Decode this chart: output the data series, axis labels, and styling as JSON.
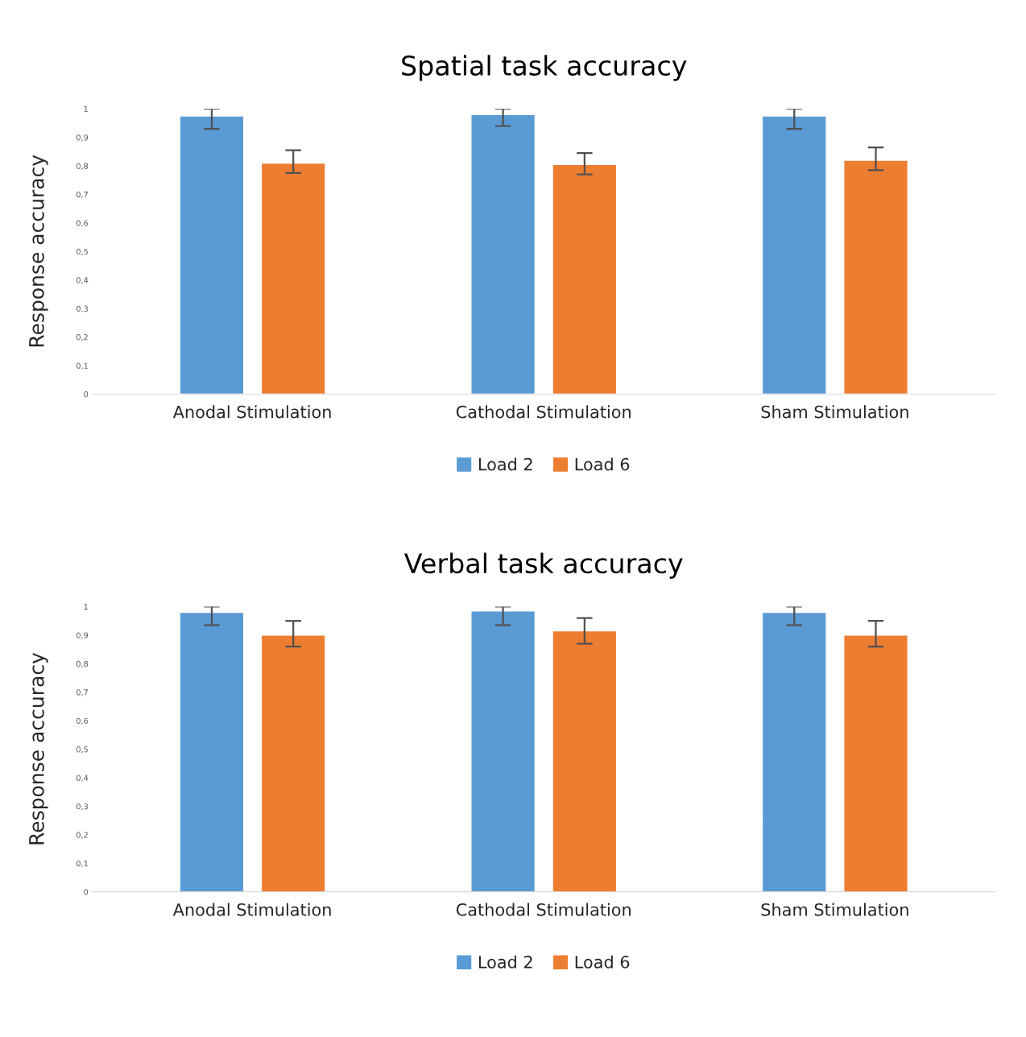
{
  "chart_data": [
    {
      "type": "bar",
      "title": "Spatial task accuracy",
      "ylabel": "Response accuracy",
      "categories": [
        "Anodal Stimulation",
        "Cathodal Stimulation",
        "Sham Stimulation"
      ],
      "series": [
        {
          "name": "Load 2",
          "color": "#5b9bd5",
          "values": [
            0.975,
            0.98,
            0.975
          ],
          "errors": [
            [
              0.93,
              1.0
            ],
            [
              0.94,
              1.0
            ],
            [
              0.93,
              1.0
            ]
          ]
        },
        {
          "name": "Load 6",
          "color": "#ed7d31",
          "values": [
            0.81,
            0.805,
            0.82
          ],
          "errors": [
            [
              0.775,
              0.855
            ],
            [
              0.77,
              0.845
            ],
            [
              0.785,
              0.865
            ]
          ]
        }
      ],
      "ylim": [
        0,
        1
      ],
      "yticks": [
        {
          "value": 0,
          "label": "0"
        },
        {
          "value": 0.1,
          "label": "0,1"
        },
        {
          "value": 0.2,
          "label": "0,2"
        },
        {
          "value": 0.3,
          "label": "0,3"
        },
        {
          "value": 0.4,
          "label": "0,4"
        },
        {
          "value": 0.5,
          "label": "0,5"
        },
        {
          "value": 0.6,
          "label": "0,6"
        },
        {
          "value": 0.7,
          "label": "0,7"
        },
        {
          "value": 0.8,
          "label": "0,8"
        },
        {
          "value": 0.9,
          "label": "0,9"
        },
        {
          "value": 1,
          "label": "1"
        }
      ],
      "grid": false,
      "legend": "bottom"
    },
    {
      "type": "bar",
      "title": "Verbal task accuracy",
      "ylabel": "Response accuracy",
      "categories": [
        "Anodal Stimulation",
        "Cathodal Stimulation",
        "Sham Stimulation"
      ],
      "series": [
        {
          "name": "Load 2",
          "color": "#5b9bd5",
          "values": [
            0.98,
            0.985,
            0.98
          ],
          "errors": [
            [
              0.935,
              1.0
            ],
            [
              0.935,
              1.0
            ],
            [
              0.935,
              1.0
            ]
          ]
        },
        {
          "name": "Load 6",
          "color": "#ed7d31",
          "values": [
            0.9,
            0.915,
            0.9
          ],
          "errors": [
            [
              0.86,
              0.95
            ],
            [
              0.87,
              0.96
            ],
            [
              0.86,
              0.95
            ]
          ]
        }
      ],
      "ylim": [
        0,
        1
      ],
      "yticks": [
        {
          "value": 0,
          "label": "0"
        },
        {
          "value": 0.1,
          "label": "0,1"
        },
        {
          "value": 0.2,
          "label": "0,2"
        },
        {
          "value": 0.3,
          "label": "0,3"
        },
        {
          "value": 0.4,
          "label": "0,4"
        },
        {
          "value": 0.5,
          "label": "0,5"
        },
        {
          "value": 0.6,
          "label": "0,6"
        },
        {
          "value": 0.7,
          "label": "0,7"
        },
        {
          "value": 0.8,
          "label": "0,8"
        },
        {
          "value": 0.9,
          "label": "0,9"
        },
        {
          "value": 1,
          "label": "1"
        }
      ],
      "grid": false,
      "legend": "bottom"
    }
  ]
}
